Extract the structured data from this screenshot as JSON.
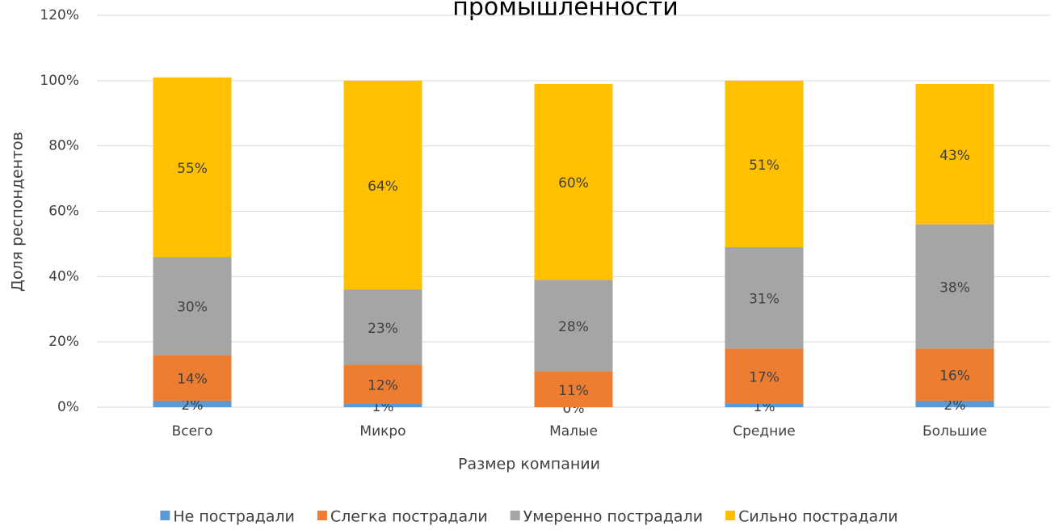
{
  "chart_data": {
    "type": "stacked_bar",
    "title": "промышленности",
    "x_label": "Размер компании",
    "y_label": "Доля респондентов",
    "categories": [
      "Всего",
      "Микро",
      "Малые",
      "Средние",
      "Большие"
    ],
    "series": [
      {
        "name": "Не пострадали",
        "color": "#5b9bd5",
        "values": [
          2,
          1,
          0,
          1,
          2
        ],
        "value_labels": [
          "2%",
          "1%",
          "0%",
          "1%",
          "2%"
        ]
      },
      {
        "name": "Слегка пострадали",
        "color": "#ed7d31",
        "values": [
          14,
          12,
          11,
          17,
          16
        ],
        "value_labels": [
          "14%",
          "12%",
          "11%",
          "17%",
          "16%"
        ]
      },
      {
        "name": "Умеренно пострадали",
        "color": "#a5a5a5",
        "values": [
          30,
          23,
          28,
          31,
          38
        ],
        "value_labels": [
          "30%",
          "23%",
          "28%",
          "31%",
          "38%"
        ]
      },
      {
        "name": "Сильно пострадали",
        "color": "#ffc000",
        "values": [
          55,
          64,
          60,
          51,
          43
        ],
        "value_labels": [
          "55%",
          "64%",
          "60%",
          "51%",
          "43%"
        ]
      }
    ],
    "ylim": [
      0,
      120
    ],
    "yticks": [
      {
        "value": 0,
        "label": "0%"
      },
      {
        "value": 20,
        "label": "20%"
      },
      {
        "value": 40,
        "label": "40%"
      },
      {
        "value": 60,
        "label": "60%"
      },
      {
        "value": 80,
        "label": "80%"
      },
      {
        "value": 100,
        "label": "100%"
      },
      {
        "value": 120,
        "label": "120%"
      }
    ],
    "grid": true,
    "legend": "bottom"
  }
}
